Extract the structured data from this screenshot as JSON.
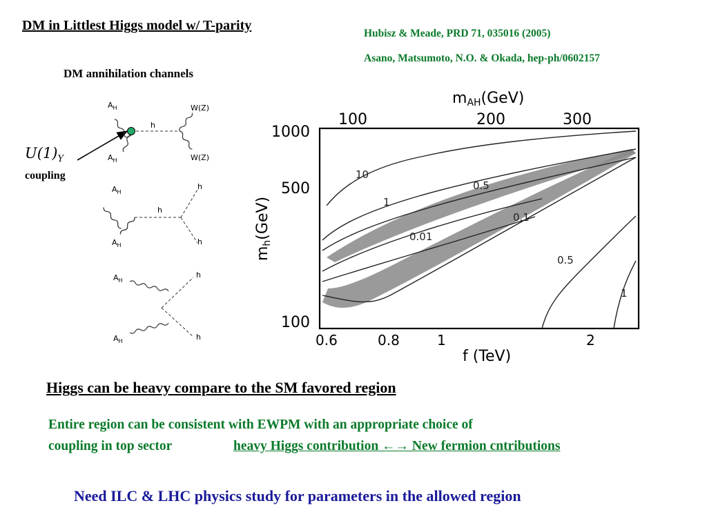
{
  "title": "DM in Littlest Higgs model w/  T-parity",
  "references": [
    "Hubisz & Meade, PRD 71, 035016 (2005)",
    "Asano, Matsumoto, N.O. & Okada, hep-ph/0602157"
  ],
  "diagrams": {
    "heading": "DM annihilation channels",
    "coupling_symbol": "U(1)",
    "coupling_subscript": "Y",
    "coupling_word": "coupling",
    "d1": {
      "in1": "A",
      "in2": "A",
      "sub": "H",
      "prop": "h",
      "out1": "W(Z)",
      "out2": "W(Z)"
    },
    "d2": {
      "in1": "A",
      "in2": "A",
      "sub": "H",
      "prop": "h",
      "out1": "h",
      "out2": "h"
    },
    "d3": {
      "in1": "A",
      "in2": "A",
      "sub": "H",
      "out1": "h",
      "out2": "h"
    },
    "vertex_color": "#22aa66"
  },
  "plot": {
    "top_axis_label_main": "m",
    "top_axis_label_sub": "AH",
    "top_axis_label_unit": "(GeV)",
    "top_ticks": [
      "100",
      "200",
      "300"
    ],
    "left_axis_label_main": "m",
    "left_axis_label_sub": "h",
    "left_axis_label_unit": "(GeV)",
    "left_ticks": [
      "1000",
      "500",
      "100"
    ],
    "bottom_axis_label": "f (TeV)",
    "bottom_ticks": [
      "0.6",
      "0.8",
      "1",
      "2"
    ],
    "contour_labels": [
      "10",
      "0.5",
      "1",
      "0.1",
      "0.01",
      "0.5",
      "1"
    ]
  },
  "statement": "Higgs can be heavy compare to the SM favored region",
  "ewpm_line1": "Entire region can be consistent with EWPM with an appropriate choice of",
  "ewpm_line2": "coupling in top sector",
  "ewpm_link": "heavy Higgs contribution ←→ New fermion cntributions",
  "conclusion": "Need  ILC & LHC physics study for parameters in the allowed region"
}
